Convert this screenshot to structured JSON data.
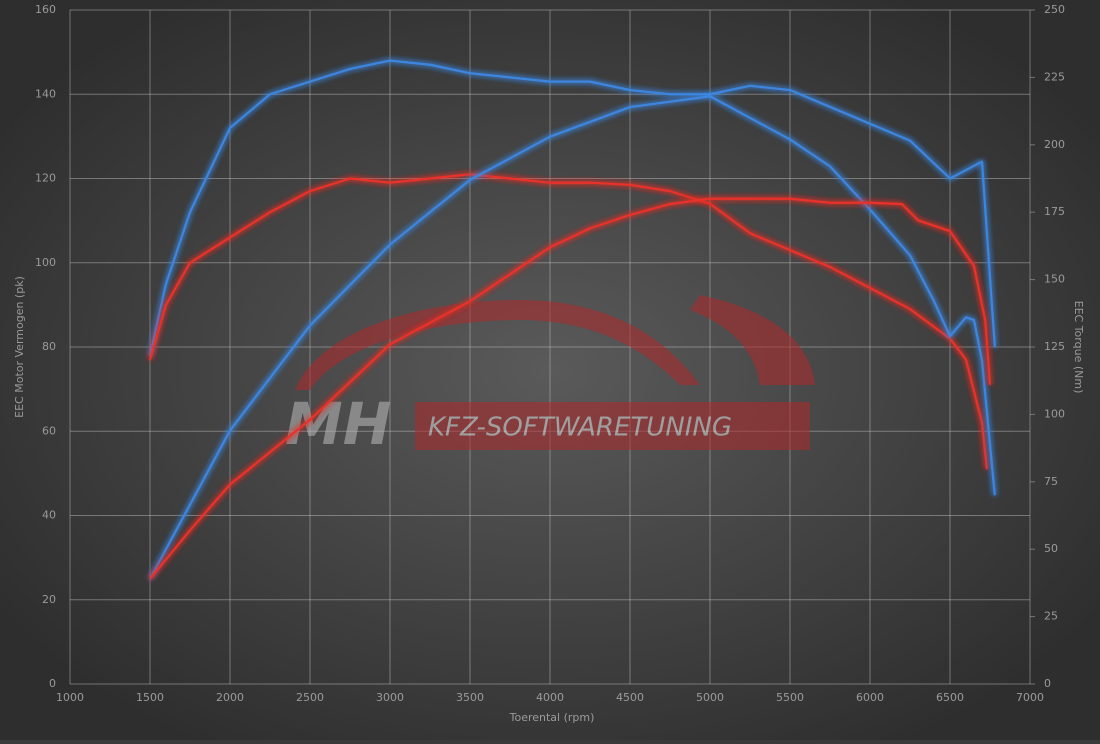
{
  "chart_data": {
    "type": "line",
    "xlabel": "Toerental (rpm)",
    "ylabel": "EEC Motor Vermogen (pk)",
    "y2label": "EEC Torque (Nm)",
    "watermark": [
      "MH",
      "KFZ-SOFTWARETUNING"
    ],
    "xlim": [
      1000,
      7000
    ],
    "xticks": [
      1000,
      1500,
      2000,
      2500,
      3000,
      3500,
      4000,
      4500,
      5000,
      5500,
      6000,
      6500,
      7000
    ],
    "ylim": [
      0,
      160
    ],
    "yticks": [
      0,
      20,
      40,
      60,
      80,
      100,
      120,
      140,
      160
    ],
    "y2lim": [
      0,
      250
    ],
    "y2ticks": [
      0,
      25,
      50,
      75,
      100,
      125,
      150,
      175,
      200,
      225,
      250
    ],
    "grid": true,
    "series": [
      {
        "color": "#3d86e0",
        "x": [
          1500,
          1600,
          1750,
          2000,
          2250,
          2500,
          2750,
          3000,
          3250,
          3500,
          3750,
          4000,
          4250,
          4500,
          4750,
          5000,
          5250,
          5500,
          5750,
          6000,
          6250,
          6500,
          6600,
          6700,
          6780
        ],
        "values": [
          78,
          95,
          112,
          132,
          140,
          143,
          146,
          148,
          147,
          145,
          144,
          143,
          143,
          141,
          140,
          140,
          142,
          141,
          137,
          133,
          129,
          120,
          122,
          124,
          80
        ]
      },
      {
        "color": "#e8302a",
        "x": [
          1500,
          1600,
          1750,
          2000,
          2250,
          2500,
          2750,
          3000,
          3250,
          3500,
          3750,
          4000,
          4250,
          4500,
          4750,
          5000,
          5250,
          5500,
          5750,
          6000,
          6250,
          6500,
          6600,
          6700,
          6730
        ],
        "values": [
          77,
          90,
          100,
          106,
          112,
          117,
          120,
          119,
          120,
          121,
          120,
          119,
          119,
          118.5,
          117,
          114,
          107,
          103,
          99,
          94,
          89,
          82,
          77,
          62,
          51
        ]
      },
      {
        "color": "#3d86e0",
        "axis": "y2",
        "x": [
          1500,
          2000,
          2500,
          3000,
          3500,
          4000,
          4500,
          5000,
          5500,
          5750,
          6000,
          6250,
          6400,
          6500,
          6600,
          6650,
          6700,
          6780
        ],
        "values": [
          39,
          94,
          133,
          163,
          187,
          203,
          214,
          218,
          202,
          192,
          176,
          159,
          142,
          129,
          136,
          135,
          120,
          70
        ]
      },
      {
        "color": "#e8302a",
        "axis": "y2",
        "x": [
          1500,
          1750,
          2000,
          2500,
          3000,
          3500,
          4000,
          4250,
          4500,
          4750,
          5000,
          5500,
          5750,
          6000,
          6200,
          6300,
          6500,
          6650,
          6720,
          6750
        ],
        "values": [
          39,
          57,
          74,
          98,
          126,
          142,
          162,
          169,
          174,
          178,
          180,
          180,
          178.5,
          178.5,
          178,
          172,
          168,
          155,
          135,
          111
        ]
      }
    ]
  }
}
